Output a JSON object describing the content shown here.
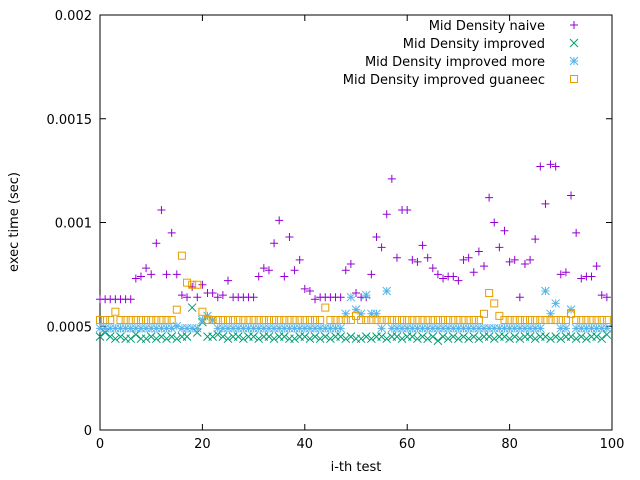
{
  "chart_data": {
    "type": "scatter",
    "title": "",
    "xlabel": "i-th test",
    "ylabel": "exec time (sec)",
    "xlim": [
      0,
      100
    ],
    "ylim": [
      0,
      0.002
    ],
    "x_ticks": [
      "0",
      "20",
      "40",
      "60",
      "80",
      "100"
    ],
    "x_tick_values": [
      0,
      20,
      40,
      60,
      80,
      100
    ],
    "y_ticks": [
      "0",
      "0.0005",
      "0.001",
      "0.0015",
      "0.002"
    ],
    "y_tick_values": [
      0,
      0.0005,
      0.001,
      0.0015,
      0.002
    ],
    "grid": false,
    "legend_position": "top-right",
    "series": [
      {
        "name": "Mid Density naive",
        "marker": "plus",
        "color": "#9400d3",
        "x": [
          0,
          1,
          2,
          3,
          4,
          5,
          6,
          7,
          8,
          9,
          10,
          11,
          12,
          13,
          14,
          15,
          16,
          17,
          18,
          19,
          20,
          21,
          22,
          23,
          24,
          25,
          26,
          27,
          28,
          29,
          30,
          31,
          32,
          33,
          34,
          35,
          36,
          37,
          38,
          39,
          40,
          41,
          42,
          43,
          44,
          45,
          46,
          47,
          48,
          49,
          50,
          51,
          52,
          53,
          54,
          55,
          56,
          57,
          58,
          59,
          60,
          61,
          62,
          63,
          64,
          65,
          66,
          67,
          68,
          69,
          70,
          71,
          72,
          73,
          74,
          75,
          76,
          77,
          78,
          79,
          80,
          81,
          82,
          83,
          84,
          85,
          86,
          87,
          88,
          89,
          90,
          91,
          92,
          93,
          94,
          95,
          96,
          97,
          98,
          99
        ],
        "y": [
          0.00063,
          0.00063,
          0.00063,
          0.00063,
          0.00063,
          0.00063,
          0.00063,
          0.00073,
          0.00074,
          0.00078,
          0.00075,
          0.0009,
          0.00106,
          0.00075,
          0.00095,
          0.00075,
          0.00065,
          0.00064,
          0.00069,
          0.00064,
          0.0007,
          0.00066,
          0.00066,
          0.00064,
          0.00065,
          0.00072,
          0.00064,
          0.00064,
          0.00064,
          0.00064,
          0.00064,
          0.00074,
          0.00078,
          0.00077,
          0.0009,
          0.00101,
          0.00074,
          0.00093,
          0.00077,
          0.00082,
          0.00068,
          0.00067,
          0.00063,
          0.00064,
          0.00064,
          0.00064,
          0.00064,
          0.00064,
          0.00077,
          0.0008,
          0.00066,
          0.00064,
          0.00064,
          0.00075,
          0.00093,
          0.00088,
          0.00104,
          0.00121,
          0.00083,
          0.00106,
          0.00106,
          0.00082,
          0.00081,
          0.00089,
          0.00083,
          0.00078,
          0.00075,
          0.00073,
          0.00074,
          0.00074,
          0.00072,
          0.00082,
          0.00083,
          0.00076,
          0.00086,
          0.00079,
          0.00112,
          0.001,
          0.00088,
          0.00096,
          0.00081,
          0.00082,
          0.00064,
          0.0008,
          0.00082,
          0.00092,
          0.00127,
          0.00109,
          0.00128,
          0.00127,
          0.00075,
          0.00076,
          0.00113,
          0.00095,
          0.00073,
          0.00074,
          0.00074,
          0.00079,
          0.00065,
          0.00064
        ]
      },
      {
        "name": "Mid Density improved",
        "marker": "x",
        "color": "#009e73",
        "x": [
          0,
          1,
          2,
          3,
          4,
          5,
          6,
          7,
          8,
          9,
          10,
          11,
          12,
          13,
          14,
          15,
          16,
          17,
          18,
          19,
          20,
          21,
          22,
          23,
          24,
          25,
          26,
          27,
          28,
          29,
          30,
          31,
          32,
          33,
          34,
          35,
          36,
          37,
          38,
          39,
          40,
          41,
          42,
          43,
          44,
          45,
          46,
          47,
          48,
          49,
          50,
          51,
          52,
          53,
          54,
          55,
          56,
          57,
          58,
          59,
          60,
          61,
          62,
          63,
          64,
          65,
          66,
          67,
          68,
          69,
          70,
          71,
          72,
          73,
          74,
          75,
          76,
          77,
          78,
          79,
          80,
          81,
          82,
          83,
          84,
          85,
          86,
          87,
          88,
          89,
          90,
          91,
          92,
          93,
          94,
          95,
          96,
          97,
          98,
          99
        ],
        "y": [
          0.00045,
          0.00047,
          0.00045,
          0.00044,
          0.00045,
          0.00044,
          0.00044,
          0.00046,
          0.00044,
          0.00044,
          0.00045,
          0.00044,
          0.00045,
          0.00044,
          0.00045,
          0.00044,
          0.00045,
          0.00045,
          0.00059,
          0.00047,
          0.00052,
          0.00045,
          0.00045,
          0.00046,
          0.00045,
          0.00044,
          0.00045,
          0.00045,
          0.00044,
          0.00045,
          0.00045,
          0.00044,
          0.00045,
          0.00045,
          0.00044,
          0.00045,
          0.00045,
          0.00044,
          0.00044,
          0.00045,
          0.00045,
          0.00044,
          0.00045,
          0.00044,
          0.00045,
          0.00044,
          0.00045,
          0.00045,
          0.00044,
          0.00045,
          0.00044,
          0.00044,
          0.00045,
          0.00044,
          0.00045,
          0.00045,
          0.00044,
          0.00045,
          0.00045,
          0.00044,
          0.00045,
          0.00045,
          0.00044,
          0.00045,
          0.00044,
          0.00045,
          0.00043,
          0.00045,
          0.00044,
          0.00045,
          0.00044,
          0.00045,
          0.00044,
          0.00045,
          0.00044,
          0.00045,
          0.00045,
          0.00044,
          0.00045,
          0.00045,
          0.00044,
          0.00045,
          0.00044,
          0.00045,
          0.00045,
          0.00044,
          0.00045,
          0.00045,
          0.00044,
          0.00045,
          0.00044,
          0.00045,
          0.00045,
          0.00044,
          0.00045,
          0.00044,
          0.00045,
          0.00045,
          0.00044,
          0.00046
        ]
      },
      {
        "name": "Mid Density improved more",
        "marker": "star",
        "color": "#56b4e9",
        "x": [
          0,
          1,
          2,
          3,
          4,
          5,
          6,
          7,
          8,
          9,
          10,
          11,
          12,
          13,
          14,
          15,
          16,
          17,
          18,
          19,
          20,
          21,
          22,
          23,
          24,
          25,
          26,
          27,
          28,
          29,
          30,
          31,
          32,
          33,
          34,
          35,
          36,
          37,
          38,
          39,
          40,
          41,
          42,
          43,
          44,
          45,
          46,
          47,
          48,
          49,
          50,
          51,
          52,
          53,
          54,
          55,
          56,
          57,
          58,
          59,
          60,
          61,
          62,
          63,
          64,
          65,
          66,
          67,
          68,
          69,
          70,
          71,
          72,
          73,
          74,
          75,
          76,
          77,
          78,
          79,
          80,
          81,
          82,
          83,
          84,
          85,
          86,
          87,
          88,
          89,
          90,
          91,
          92,
          93,
          94,
          95,
          96,
          97,
          98,
          99
        ],
        "y": [
          0.00049,
          0.00049,
          0.00049,
          0.00049,
          0.00049,
          0.00049,
          0.00049,
          0.00049,
          0.00049,
          0.00049,
          0.00049,
          0.00049,
          0.00049,
          0.00049,
          0.00049,
          0.0005,
          0.00049,
          0.00049,
          0.00049,
          0.00049,
          0.00053,
          0.00055,
          0.00053,
          0.00049,
          0.00049,
          0.00049,
          0.00049,
          0.00049,
          0.00049,
          0.00049,
          0.00049,
          0.00049,
          0.00049,
          0.00049,
          0.00049,
          0.00049,
          0.00049,
          0.00049,
          0.00049,
          0.00049,
          0.00049,
          0.00049,
          0.00049,
          0.00049,
          0.00049,
          0.00049,
          0.00049,
          0.00049,
          0.00056,
          0.00064,
          0.00058,
          0.00056,
          0.00065,
          0.00056,
          0.00056,
          0.00049,
          0.00067,
          0.00049,
          0.00049,
          0.00049,
          0.00049,
          0.00049,
          0.00049,
          0.00049,
          0.00049,
          0.00049,
          0.00049,
          0.00049,
          0.00049,
          0.00049,
          0.00049,
          0.00049,
          0.00049,
          0.00049,
          0.00049,
          0.00049,
          0.00049,
          0.00049,
          0.00049,
          0.00049,
          0.00049,
          0.00049,
          0.00049,
          0.00049,
          0.00049,
          0.00049,
          0.00049,
          0.00067,
          0.00056,
          0.00061,
          0.00049,
          0.00049,
          0.00058,
          0.00049,
          0.00049,
          0.00049,
          0.00049,
          0.00049,
          0.00049,
          0.00049
        ]
      },
      {
        "name": "Mid Density improved guaneec",
        "marker": "square",
        "color": "#e69f00",
        "x": [
          0,
          1,
          2,
          3,
          4,
          5,
          6,
          7,
          8,
          9,
          10,
          11,
          12,
          13,
          14,
          15,
          16,
          17,
          18,
          19,
          20,
          21,
          22,
          23,
          24,
          25,
          26,
          27,
          28,
          29,
          30,
          31,
          32,
          33,
          34,
          35,
          36,
          37,
          38,
          39,
          40,
          41,
          42,
          43,
          44,
          45,
          46,
          47,
          48,
          49,
          50,
          51,
          52,
          53,
          54,
          55,
          56,
          57,
          58,
          59,
          60,
          61,
          62,
          63,
          64,
          65,
          66,
          67,
          68,
          69,
          70,
          71,
          72,
          73,
          74,
          75,
          76,
          77,
          78,
          79,
          80,
          81,
          82,
          83,
          84,
          85,
          86,
          87,
          88,
          89,
          90,
          91,
          92,
          93,
          94,
          95,
          96,
          97,
          98,
          99
        ],
        "y": [
          0.00053,
          0.00053,
          0.00053,
          0.00057,
          0.00053,
          0.00053,
          0.00053,
          0.00053,
          0.00053,
          0.00053,
          0.00053,
          0.00053,
          0.00053,
          0.00053,
          0.00053,
          0.00058,
          0.00084,
          0.00071,
          0.0007,
          0.0007,
          0.00057,
          0.00053,
          0.00053,
          0.00053,
          0.00053,
          0.00053,
          0.00053,
          0.00053,
          0.00053,
          0.00053,
          0.00053,
          0.00053,
          0.00053,
          0.00053,
          0.00053,
          0.00053,
          0.00053,
          0.00053,
          0.00053,
          0.00053,
          0.00053,
          0.00053,
          0.00053,
          0.00053,
          0.00059,
          0.00053,
          0.00053,
          0.00053,
          0.00053,
          0.00053,
          0.00055,
          0.00053,
          0.00053,
          0.00053,
          0.00053,
          0.00053,
          0.00053,
          0.00053,
          0.00053,
          0.00053,
          0.00053,
          0.00053,
          0.00053,
          0.00053,
          0.00053,
          0.00053,
          0.00053,
          0.00053,
          0.00053,
          0.00053,
          0.00053,
          0.00053,
          0.00053,
          0.00053,
          0.00053,
          0.00056,
          0.00066,
          0.00061,
          0.00055,
          0.00053,
          0.00053,
          0.00053,
          0.00053,
          0.00053,
          0.00053,
          0.00053,
          0.00053,
          0.00053,
          0.00053,
          0.00053,
          0.00053,
          0.00053,
          0.00056,
          0.00053,
          0.00053,
          0.00053,
          0.00053,
          0.00053,
          0.00053,
          0.00053
        ]
      }
    ]
  }
}
